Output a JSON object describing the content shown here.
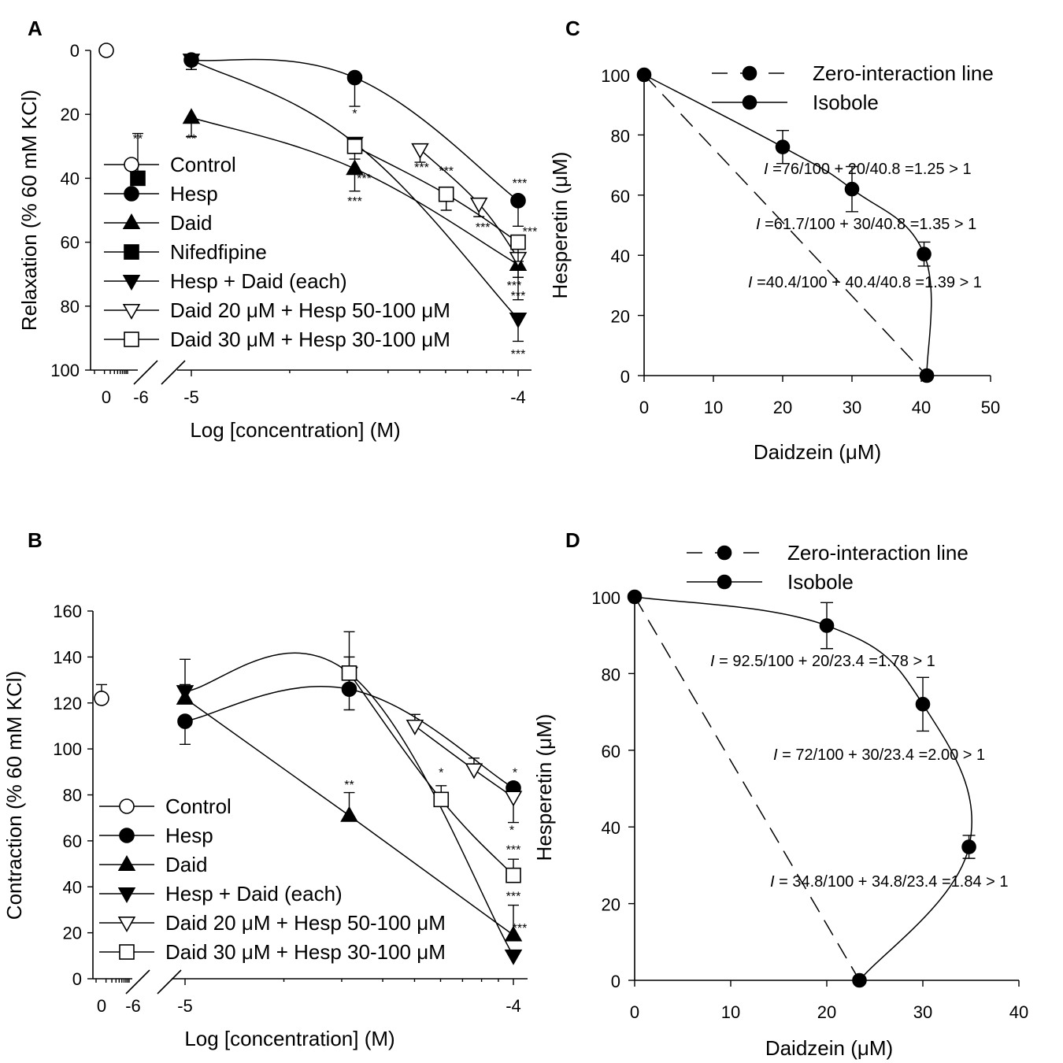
{
  "panels": {
    "A": {
      "label": "A",
      "ylabel": "Relaxation (% 60 mM KCl)",
      "xlabel": "Log [concentration] (M)"
    },
    "B": {
      "label": "B",
      "ylabel": "Contraction (% 60 mM KCl)",
      "xlabel": "Log [concentration] (M)"
    },
    "C": {
      "label": "C",
      "ylabel": "Hesperetin (μM)",
      "xlabel": "Daidzein (μM)"
    },
    "D": {
      "label": "D",
      "ylabel": "Hesperetin (μM)",
      "xlabel": "Daidzein (μM)"
    }
  },
  "chart_data": [
    {
      "id": "A",
      "type": "line",
      "title": "",
      "xlabel": "Log [concentration] (M)",
      "ylabel": "Relaxation (% 60 mM KCl)",
      "ylim": [
        100,
        0
      ],
      "y_inverted": true,
      "yticks": [
        0,
        20,
        40,
        60,
        80,
        100
      ],
      "xlim": [
        -5.03,
        -3.96
      ],
      "xticks": [
        -5,
        -4
      ],
      "broken_axis_ticks": [
        "0",
        "-6"
      ],
      "legend_position": "left",
      "legend": [
        "Control",
        "Hesp",
        "Daid",
        "Nifedfipine",
        "Hesp + Daid (each)",
        "Daid 20 μM + Hesp 50-100 μM",
        "Daid 30 μM + Hesp 30-100 μM"
      ],
      "series": [
        {
          "name": "Control",
          "marker": "circle-open",
          "x": [
            "0"
          ],
          "y": [
            0
          ],
          "err": [
            0
          ]
        },
        {
          "name": "Nifedfipine",
          "marker": "square-filled",
          "x": [
            "-6"
          ],
          "y": [
            40
          ],
          "err": [
            14
          ],
          "sig": [
            "**"
          ]
        },
        {
          "name": "Hesp",
          "marker": "circle-filled",
          "x": [
            -5,
            -4.5,
            -4
          ],
          "y": [
            3,
            8.5,
            47
          ],
          "err": [
            3,
            9,
            8
          ],
          "sig": [
            "",
            "",
            "***"
          ]
        },
        {
          "name": "Daid",
          "marker": "triangle-up-filled",
          "x": [
            -5,
            -4.5,
            -4
          ],
          "y": [
            21,
            37,
            67
          ],
          "err": [
            6,
            7,
            11
          ],
          "sig": [
            "**",
            "***",
            "***"
          ]
        },
        {
          "name": "Hesp + Daid (each)",
          "marker": "triangle-down-filled",
          "x": [
            -5,
            -4.5,
            -4
          ],
          "y": [
            3,
            29,
            84
          ],
          "err": [
            3,
            3,
            7
          ],
          "sig": [
            "",
            "*",
            "***"
          ]
        },
        {
          "name": "Daid 20 μM + Hesp 50-100 μM",
          "marker": "triangle-down-open",
          "x": [
            -4.3,
            -4.12,
            -4
          ],
          "y": [
            31,
            48,
            65
          ],
          "err": [
            4,
            4,
            6
          ],
          "sig": [
            "***",
            "***",
            "***"
          ]
        },
        {
          "name": "Daid 30 μM + Hesp 30-100 μM",
          "marker": "square-open",
          "x": [
            -4.5,
            -4.22,
            -4
          ],
          "y": [
            30,
            45,
            60
          ],
          "err": [
            4,
            5,
            6
          ],
          "sig": [
            "***",
            "***",
            "***"
          ]
        }
      ]
    },
    {
      "id": "B",
      "type": "line",
      "title": "",
      "xlabel": "Log [concentration] (M)",
      "ylabel": "Contraction (% 60 mM KCl)",
      "ylim": [
        0,
        160
      ],
      "yticks": [
        0,
        20,
        40,
        60,
        80,
        100,
        120,
        140,
        160
      ],
      "xlim": [
        -5.03,
        -3.96
      ],
      "xticks": [
        -5,
        -4
      ],
      "broken_axis_ticks": [
        "0",
        "-6"
      ],
      "legend_position": "bottom-left",
      "legend": [
        "Control",
        "Hesp",
        "Daid",
        "Hesp + Daid (each)",
        "Daid 20 μM + Hesp 50-100 μM",
        "Daid 30 μM + Hesp 30-100 μM"
      ],
      "series": [
        {
          "name": "Control",
          "marker": "circle-open",
          "x": [
            "0"
          ],
          "y": [
            122
          ],
          "err": [
            6
          ]
        },
        {
          "name": "Hesp",
          "marker": "circle-filled",
          "x": [
            -5,
            -4.5,
            -4
          ],
          "y": [
            112,
            126,
            83
          ],
          "err": [
            10,
            9,
            0
          ],
          "sig": [
            "",
            "",
            "*"
          ]
        },
        {
          "name": "Daid",
          "marker": "triangle-up-filled",
          "x": [
            -5,
            -4.5,
            -4
          ],
          "y": [
            122,
            71,
            19
          ],
          "err": [
            6,
            10,
            13
          ],
          "sig": [
            "",
            "**",
            "***"
          ]
        },
        {
          "name": "Hesp + Daid (each)",
          "marker": "triangle-down-filled",
          "x": [
            -5,
            -4.5,
            -4
          ],
          "y": [
            125,
            133,
            10
          ],
          "err": [
            14,
            18,
            0
          ],
          "sig": [
            "",
            "",
            "***"
          ]
        },
        {
          "name": "Daid 20 μM + Hesp 50-100 μM",
          "marker": "triangle-down-open",
          "x": [
            -4.3,
            -4.12,
            -4
          ],
          "y": [
            110,
            91,
            79
          ],
          "err": [
            5,
            5,
            11
          ],
          "sig": [
            "",
            "",
            "*"
          ]
        },
        {
          "name": "Daid 30 μM + Hesp 30-100 μM",
          "marker": "square-open",
          "x": [
            -4.5,
            -4.22,
            -4
          ],
          "y": [
            133,
            78,
            45
          ],
          "err": [
            7,
            6,
            7
          ],
          "sig": [
            "",
            "*",
            "***"
          ]
        }
      ]
    },
    {
      "id": "C",
      "type": "line",
      "title": "",
      "xlabel": "Daidzein (μM)",
      "ylabel": "Hesperetin (μM)",
      "xlim": [
        0,
        50
      ],
      "ylim": [
        0,
        100
      ],
      "xticks": [
        0,
        10,
        20,
        30,
        40,
        50
      ],
      "yticks": [
        0,
        20,
        40,
        60,
        80,
        100
      ],
      "legend_position": "top",
      "legend": [
        "Zero-interaction line",
        "Isobole"
      ],
      "series": [
        {
          "name": "Zero-interaction line",
          "style": "dashed",
          "x": [
            0,
            40.8
          ],
          "y": [
            100,
            0
          ]
        },
        {
          "name": "Isobole",
          "style": "solid",
          "x": [
            0,
            20,
            30,
            40.4,
            40.8
          ],
          "y": [
            100,
            76,
            62,
            40.4,
            0
          ],
          "err": [
            0,
            5.5,
            7.5,
            4,
            0
          ]
        }
      ],
      "annotations": [
        {
          "italic": "I",
          "text": " =76/100 + 20/40.8 =1.25 > 1"
        },
        {
          "italic": "I",
          "text": " =61.7/100 + 30/40.8 =1.35 > 1"
        },
        {
          "italic": "I",
          "text": " =40.4/100 + 40.4/40.8 =1.39 > 1"
        }
      ]
    },
    {
      "id": "D",
      "type": "line",
      "title": "",
      "xlabel": "Daidzein (μM)",
      "ylabel": "Hesperetin (μM)",
      "xlim": [
        0,
        40
      ],
      "ylim": [
        0,
        100
      ],
      "xticks": [
        0,
        10,
        20,
        30,
        40
      ],
      "yticks": [
        0,
        20,
        40,
        60,
        80,
        100
      ],
      "legend_position": "top",
      "legend": [
        "Zero-interaction line",
        "Isobole"
      ],
      "series": [
        {
          "name": "Zero-interaction line",
          "style": "dashed",
          "x": [
            0,
            23.4
          ],
          "y": [
            100,
            0
          ]
        },
        {
          "name": "Isobole",
          "style": "solid",
          "x": [
            0,
            20,
            30,
            34.8,
            23.4
          ],
          "y": [
            100,
            92.5,
            72,
            34.8,
            0
          ],
          "err": [
            0,
            6,
            7,
            3,
            0
          ]
        }
      ],
      "annotations": [
        {
          "italic": "I",
          "text": " = 92.5/100 + 20/23.4 =1.78 > 1"
        },
        {
          "italic": "I",
          "text": " = 72/100 + 30/23.4 =2.00 > 1"
        },
        {
          "italic": "I",
          "text": " = 34.8/100 + 34.8/23.4 =1.84 > 1"
        }
      ]
    }
  ]
}
